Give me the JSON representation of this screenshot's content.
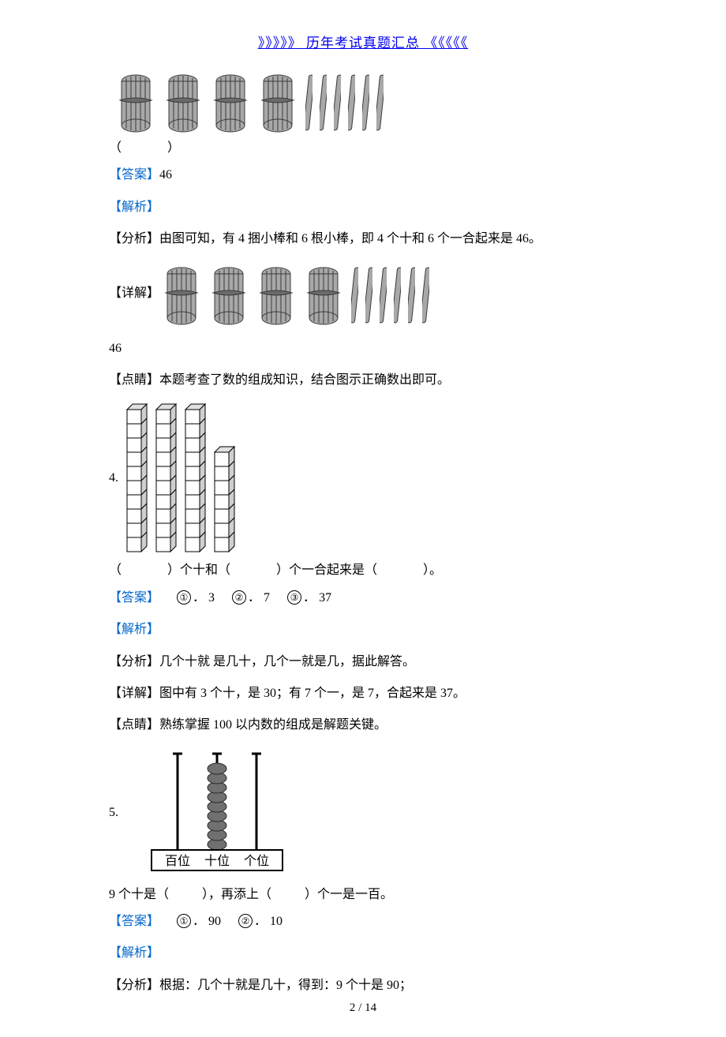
{
  "header": {
    "link_text": "》》》》》 历年考试真题汇总 《《《《《"
  },
  "q3": {
    "blank_left": "（",
    "blank_right": "）",
    "answer_label": "【答案】",
    "answer_value": "46",
    "jiexi_label": "【解析】",
    "fenxi_label": "【分析】",
    "fenxi_text": "由图可知，有 4 捆小棒和 6 根小棒，即 4 个十和 6 个一合起来是 46。",
    "xiangjie_label": "【详解】",
    "value_line": "46",
    "dianjing_label": "【点睛】",
    "dianjing_text": "本题考查了数的组成知识，结合图示正确数出即可。",
    "sticks": {
      "bundle_count": 4,
      "single_count": 6,
      "bundle_fill": "#a8a8a8",
      "bundle_stroke": "#3a3a3a",
      "stick_fill": "#a8a8a8",
      "stick_stroke": "#3a3a3a"
    }
  },
  "q4": {
    "number": "4.",
    "sentence_parts": [
      "（",
      "）个十和（",
      "）个一合起来是（",
      "）。"
    ],
    "answer_label": "【答案】",
    "blanks": [
      {
        "circ": "①",
        "sep": "．",
        "val": "3"
      },
      {
        "circ": "②",
        "sep": "．",
        "val": "7"
      },
      {
        "circ": "③",
        "sep": "．",
        "val": "37"
      }
    ],
    "jiexi_label": "【解析】",
    "fenxi_label": "【分析】",
    "fenxi_text": "几个十就 是几十，几个一就是几，据此解答。",
    "xiangjie_label": "【详解】",
    "xiangjie_text": "图中有 3 个十，是 30；有 7 个一，是 7，合起来是 37。",
    "dianjing_label": "【点睛】",
    "dianjing_text": "熟练掌握 100 以内数的组成是解题关键。",
    "cubes": {
      "columns": [
        10,
        10,
        10,
        7
      ],
      "cube_size": 18,
      "fill": "#ffffff",
      "stroke": "#000000",
      "top_fill": "#e0e0e0",
      "side_fill": "#cfcfcf"
    }
  },
  "q5": {
    "number": "5.",
    "sentence_prefix": "9 个十是（",
    "sentence_mid": "），再添上（",
    "sentence_suffix": "）个一是一百。",
    "answer_label": "【答案】",
    "blanks": [
      {
        "circ": "①",
        "sep": "．",
        "val": "90"
      },
      {
        "circ": "②",
        "sep": "．",
        "val": "10"
      }
    ],
    "jiexi_label": "【解析】",
    "fenxi_label": "【分析】",
    "fenxi_text": "根据：几个十就是几十，得到：9 个十是 90；",
    "abacus": {
      "labels": [
        "百位",
        "十位",
        "个位"
      ],
      "beads": [
        0,
        9,
        0
      ],
      "rod_color": "#000000",
      "bead_fill": "#707070",
      "bead_stroke": "#2a2a2a",
      "frame_stroke": "#000000",
      "label_fontsize": 16
    }
  },
  "footer": {
    "page": "2 / 14"
  },
  "colors": {
    "blue": "#0066cc",
    "text": "#000000",
    "bg": "#ffffff"
  }
}
